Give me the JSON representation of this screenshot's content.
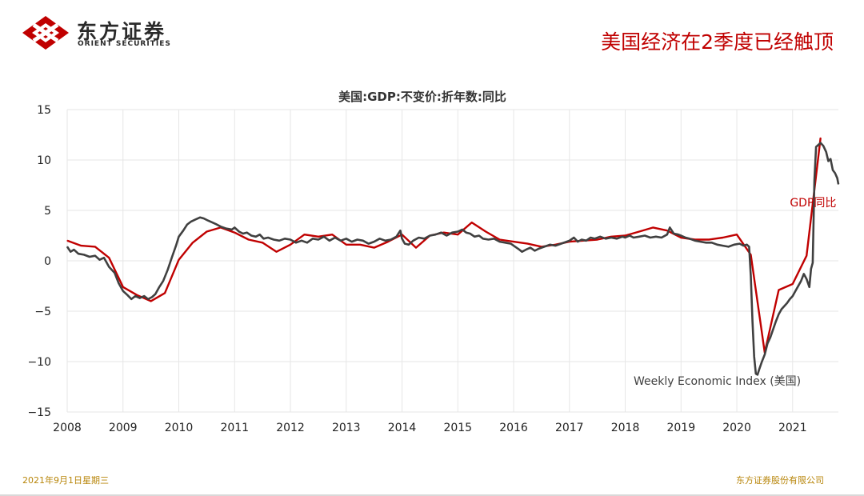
{
  "header": {
    "logo_cn": "东方证券",
    "logo_en": "ORIENT SECURITIES",
    "title": "美国经济在2季度已经触顶"
  },
  "footer": {
    "date": "2021年9月1日星期三",
    "company": "东方证券股份有限公司"
  },
  "colors": {
    "brand_red": "#c00000",
    "gdp_line": "#c00000",
    "wei_line": "#404040",
    "grid": "#e6e6e6"
  },
  "chart_data": {
    "type": "line",
    "title": "美国:GDP:不变价:折年数:同比",
    "xlabel": "",
    "ylabel": "",
    "ylim": [
      -15,
      15
    ],
    "yticks": [
      15,
      10,
      5,
      0,
      -5,
      -10,
      -15
    ],
    "xlim": [
      2008,
      2021.82
    ],
    "xticks": [
      "2008",
      "2009",
      "2010",
      "2011",
      "2012",
      "2013",
      "2014",
      "2015",
      "2016",
      "2017",
      "2018",
      "2019",
      "2020",
      "2021"
    ],
    "grid": true,
    "annotations": [
      {
        "text": "GDP同比",
        "series": "gdp",
        "color": "#c00000",
        "x": 2020.95,
        "y": 5.4
      },
      {
        "text": "Weekly Economic Index (美国)",
        "series": "wei",
        "color": "#404040",
        "x": 2018.15,
        "y": -12.3
      }
    ],
    "series": [
      {
        "id": "gdp",
        "name": "GDP同比",
        "color": "#c00000",
        "points": [
          [
            2008.0,
            2.0
          ],
          [
            2008.25,
            1.5
          ],
          [
            2008.5,
            1.4
          ],
          [
            2008.75,
            0.3
          ],
          [
            2009.0,
            -2.6
          ],
          [
            2009.25,
            -3.4
          ],
          [
            2009.5,
            -4.0
          ],
          [
            2009.75,
            -3.2
          ],
          [
            2010.0,
            0.1
          ],
          [
            2010.25,
            1.8
          ],
          [
            2010.5,
            2.9
          ],
          [
            2010.75,
            3.3
          ],
          [
            2011.0,
            2.8
          ],
          [
            2011.25,
            2.1
          ],
          [
            2011.5,
            1.8
          ],
          [
            2011.75,
            0.9
          ],
          [
            2012.0,
            1.6
          ],
          [
            2012.25,
            2.6
          ],
          [
            2012.5,
            2.4
          ],
          [
            2012.75,
            2.6
          ],
          [
            2013.0,
            1.6
          ],
          [
            2013.25,
            1.6
          ],
          [
            2013.5,
            1.3
          ],
          [
            2013.75,
            1.9
          ],
          [
            2014.0,
            2.6
          ],
          [
            2014.25,
            1.3
          ],
          [
            2014.5,
            2.5
          ],
          [
            2014.75,
            2.8
          ],
          [
            2015.0,
            2.6
          ],
          [
            2015.25,
            3.8
          ],
          [
            2015.5,
            2.9
          ],
          [
            2015.75,
            2.1
          ],
          [
            2016.0,
            1.9
          ],
          [
            2016.25,
            1.7
          ],
          [
            2016.5,
            1.4
          ],
          [
            2016.75,
            1.6
          ],
          [
            2017.0,
            1.9
          ],
          [
            2017.25,
            2.0
          ],
          [
            2017.5,
            2.1
          ],
          [
            2017.75,
            2.4
          ],
          [
            2018.0,
            2.5
          ],
          [
            2018.25,
            2.9
          ],
          [
            2018.5,
            3.3
          ],
          [
            2018.75,
            3.0
          ],
          [
            2019.0,
            2.3
          ],
          [
            2019.25,
            2.1
          ],
          [
            2019.5,
            2.1
          ],
          [
            2019.75,
            2.3
          ],
          [
            2020.0,
            2.6
          ],
          [
            2020.25,
            0.6
          ],
          [
            2020.5,
            -9.1
          ],
          [
            2020.75,
            -2.9
          ],
          [
            2021.0,
            -2.3
          ],
          [
            2021.25,
            0.5
          ],
          [
            2021.5,
            12.2
          ]
        ]
      },
      {
        "id": "wei",
        "name": "Weekly Economic Index (美国)",
        "color": "#404040",
        "points": [
          [
            2008.0,
            1.4
          ],
          [
            2008.06,
            0.9
          ],
          [
            2008.12,
            1.1
          ],
          [
            2008.2,
            0.7
          ],
          [
            2008.3,
            0.6
          ],
          [
            2008.4,
            0.4
          ],
          [
            2008.5,
            0.5
          ],
          [
            2008.58,
            0.1
          ],
          [
            2008.66,
            0.3
          ],
          [
            2008.75,
            -0.6
          ],
          [
            2008.85,
            -1.2
          ],
          [
            2008.92,
            -2.2
          ],
          [
            2009.0,
            -3.0
          ],
          [
            2009.08,
            -3.4
          ],
          [
            2009.15,
            -3.8
          ],
          [
            2009.22,
            -3.5
          ],
          [
            2009.3,
            -3.7
          ],
          [
            2009.38,
            -3.5
          ],
          [
            2009.45,
            -3.8
          ],
          [
            2009.52,
            -3.6
          ],
          [
            2009.58,
            -3.3
          ],
          [
            2009.65,
            -2.6
          ],
          [
            2009.72,
            -2.0
          ],
          [
            2009.8,
            -0.9
          ],
          [
            2009.88,
            0.4
          ],
          [
            2009.95,
            1.5
          ],
          [
            2010.0,
            2.4
          ],
          [
            2010.08,
            3.0
          ],
          [
            2010.15,
            3.6
          ],
          [
            2010.22,
            3.9
          ],
          [
            2010.3,
            4.1
          ],
          [
            2010.38,
            4.3
          ],
          [
            2010.45,
            4.2
          ],
          [
            2010.52,
            4.0
          ],
          [
            2010.6,
            3.8
          ],
          [
            2010.68,
            3.6
          ],
          [
            2010.75,
            3.4
          ],
          [
            2010.85,
            3.2
          ],
          [
            2010.95,
            3.1
          ],
          [
            2011.0,
            3.3
          ],
          [
            2011.08,
            2.9
          ],
          [
            2011.15,
            2.7
          ],
          [
            2011.22,
            2.8
          ],
          [
            2011.3,
            2.5
          ],
          [
            2011.38,
            2.4
          ],
          [
            2011.45,
            2.6
          ],
          [
            2011.52,
            2.2
          ],
          [
            2011.6,
            2.3
          ],
          [
            2011.7,
            2.1
          ],
          [
            2011.8,
            2.0
          ],
          [
            2011.9,
            2.2
          ],
          [
            2012.0,
            2.1
          ],
          [
            2012.1,
            1.8
          ],
          [
            2012.2,
            2.0
          ],
          [
            2012.3,
            1.8
          ],
          [
            2012.4,
            2.2
          ],
          [
            2012.5,
            2.1
          ],
          [
            2012.6,
            2.4
          ],
          [
            2012.7,
            2.0
          ],
          [
            2012.8,
            2.3
          ],
          [
            2012.9,
            2.0
          ],
          [
            2013.0,
            2.2
          ],
          [
            2013.1,
            1.9
          ],
          [
            2013.2,
            2.1
          ],
          [
            2013.3,
            2.0
          ],
          [
            2013.4,
            1.7
          ],
          [
            2013.5,
            1.9
          ],
          [
            2013.6,
            2.2
          ],
          [
            2013.7,
            2.0
          ],
          [
            2013.8,
            2.1
          ],
          [
            2013.9,
            2.4
          ],
          [
            2013.97,
            3.0
          ],
          [
            2014.0,
            2.2
          ],
          [
            2014.05,
            1.7
          ],
          [
            2014.12,
            1.6
          ],
          [
            2014.2,
            2.0
          ],
          [
            2014.3,
            2.3
          ],
          [
            2014.4,
            2.2
          ],
          [
            2014.5,
            2.5
          ],
          [
            2014.6,
            2.6
          ],
          [
            2014.7,
            2.8
          ],
          [
            2014.8,
            2.5
          ],
          [
            2014.9,
            2.8
          ],
          [
            2015.0,
            2.9
          ],
          [
            2015.08,
            3.1
          ],
          [
            2015.15,
            2.8
          ],
          [
            2015.22,
            2.7
          ],
          [
            2015.3,
            2.4
          ],
          [
            2015.38,
            2.5
          ],
          [
            2015.45,
            2.2
          ],
          [
            2015.55,
            2.1
          ],
          [
            2015.65,
            2.2
          ],
          [
            2015.75,
            1.9
          ],
          [
            2015.85,
            1.8
          ],
          [
            2015.95,
            1.7
          ],
          [
            2016.0,
            1.5
          ],
          [
            2016.08,
            1.2
          ],
          [
            2016.15,
            0.9
          ],
          [
            2016.22,
            1.1
          ],
          [
            2016.3,
            1.3
          ],
          [
            2016.38,
            1.0
          ],
          [
            2016.45,
            1.2
          ],
          [
            2016.55,
            1.4
          ],
          [
            2016.65,
            1.6
          ],
          [
            2016.75,
            1.5
          ],
          [
            2016.85,
            1.7
          ],
          [
            2016.95,
            1.9
          ],
          [
            2017.0,
            2.0
          ],
          [
            2017.08,
            2.3
          ],
          [
            2017.15,
            1.9
          ],
          [
            2017.22,
            2.1
          ],
          [
            2017.3,
            2.0
          ],
          [
            2017.38,
            2.3
          ],
          [
            2017.45,
            2.2
          ],
          [
            2017.55,
            2.4
          ],
          [
            2017.65,
            2.2
          ],
          [
            2017.75,
            2.3
          ],
          [
            2017.85,
            2.2
          ],
          [
            2017.95,
            2.4
          ],
          [
            2018.0,
            2.3
          ],
          [
            2018.08,
            2.5
          ],
          [
            2018.15,
            2.3
          ],
          [
            2018.25,
            2.4
          ],
          [
            2018.35,
            2.5
          ],
          [
            2018.45,
            2.3
          ],
          [
            2018.55,
            2.4
          ],
          [
            2018.65,
            2.3
          ],
          [
            2018.75,
            2.6
          ],
          [
            2018.8,
            3.3
          ],
          [
            2018.87,
            2.7
          ],
          [
            2018.95,
            2.6
          ],
          [
            2019.0,
            2.5
          ],
          [
            2019.08,
            2.3
          ],
          [
            2019.15,
            2.2
          ],
          [
            2019.25,
            2.0
          ],
          [
            2019.35,
            1.9
          ],
          [
            2019.45,
            1.8
          ],
          [
            2019.55,
            1.8
          ],
          [
            2019.65,
            1.6
          ],
          [
            2019.75,
            1.5
          ],
          [
            2019.85,
            1.4
          ],
          [
            2019.95,
            1.6
          ],
          [
            2020.05,
            1.7
          ],
          [
            2020.12,
            1.5
          ],
          [
            2020.18,
            1.6
          ],
          [
            2020.22,
            1.4
          ],
          [
            2020.25,
            -1.5
          ],
          [
            2020.28,
            -6.0
          ],
          [
            2020.31,
            -9.5
          ],
          [
            2020.34,
            -11.2
          ],
          [
            2020.37,
            -11.3
          ],
          [
            2020.4,
            -10.8
          ],
          [
            2020.45,
            -10.0
          ],
          [
            2020.5,
            -9.3
          ],
          [
            2020.55,
            -8.2
          ],
          [
            2020.6,
            -7.6
          ],
          [
            2020.65,
            -6.8
          ],
          [
            2020.7,
            -6.0
          ],
          [
            2020.75,
            -5.3
          ],
          [
            2020.8,
            -4.8
          ],
          [
            2020.85,
            -4.5
          ],
          [
            2020.9,
            -4.2
          ],
          [
            2020.95,
            -3.8
          ],
          [
            2021.0,
            -3.5
          ],
          [
            2021.05,
            -3.0
          ],
          [
            2021.1,
            -2.5
          ],
          [
            2021.15,
            -2.0
          ],
          [
            2021.2,
            -1.3
          ],
          [
            2021.25,
            -1.8
          ],
          [
            2021.3,
            -2.6
          ],
          [
            2021.33,
            -0.8
          ],
          [
            2021.36,
            -0.2
          ],
          [
            2021.39,
            8.0
          ],
          [
            2021.42,
            11.3
          ],
          [
            2021.46,
            11.5
          ],
          [
            2021.5,
            11.7
          ],
          [
            2021.55,
            11.4
          ],
          [
            2021.6,
            10.8
          ],
          [
            2021.64,
            9.9
          ],
          [
            2021.68,
            10.1
          ],
          [
            2021.72,
            9.0
          ],
          [
            2021.76,
            8.7
          ],
          [
            2021.8,
            8.2
          ],
          [
            2021.82,
            7.6
          ]
        ]
      }
    ]
  }
}
